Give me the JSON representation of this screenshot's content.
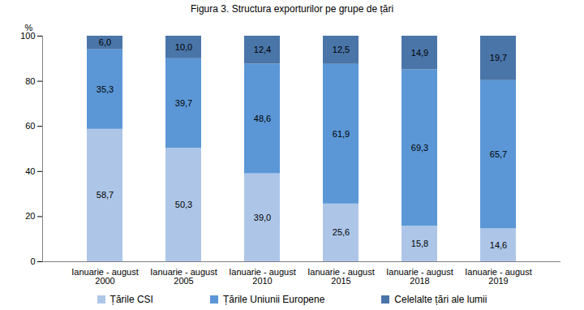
{
  "chart_data": {
    "type": "bar",
    "stacked": true,
    "title": "Figura 3. Structura exporturilor pe grupe de țări",
    "y_label": "%",
    "categories": [
      "Ianuarie - august\n2000",
      "Ianuarie - august\n2005",
      "Ianuarie - august\n2010",
      "Ianuarie - august\n2015",
      "Ianuarie - august\n2018",
      "Ianuarie - august\n2019"
    ],
    "series": [
      {
        "name": "Țările CSI",
        "color": "#adc6e8",
        "values": [
          58.7,
          50.3,
          39.0,
          25.6,
          15.8,
          14.6
        ],
        "value_labels": [
          "58,7",
          "50,3",
          "39,0",
          "25,6",
          "15,8",
          "14,6"
        ]
      },
      {
        "name": "Țările Uniunii Europene",
        "color": "#5b97d6",
        "values": [
          35.3,
          39.7,
          48.6,
          61.9,
          69.3,
          65.7
        ],
        "value_labels": [
          "35,3",
          "39,7",
          "48,6",
          "61,9",
          "69,3",
          "65,7"
        ]
      },
      {
        "name": "Celelalte țări ale lumii",
        "color": "#4a75a8",
        "values": [
          6.0,
          10.0,
          12.4,
          12.5,
          14.9,
          19.7
        ],
        "value_labels": [
          "6,0",
          "10,0",
          "12,4",
          "12,5",
          "14,9",
          "19,7"
        ]
      }
    ],
    "ylim": [
      0,
      100
    ],
    "yticks": [
      0,
      20,
      40,
      60,
      80,
      100
    ],
    "grid": false,
    "data_labels": true,
    "legend": "bottom"
  }
}
